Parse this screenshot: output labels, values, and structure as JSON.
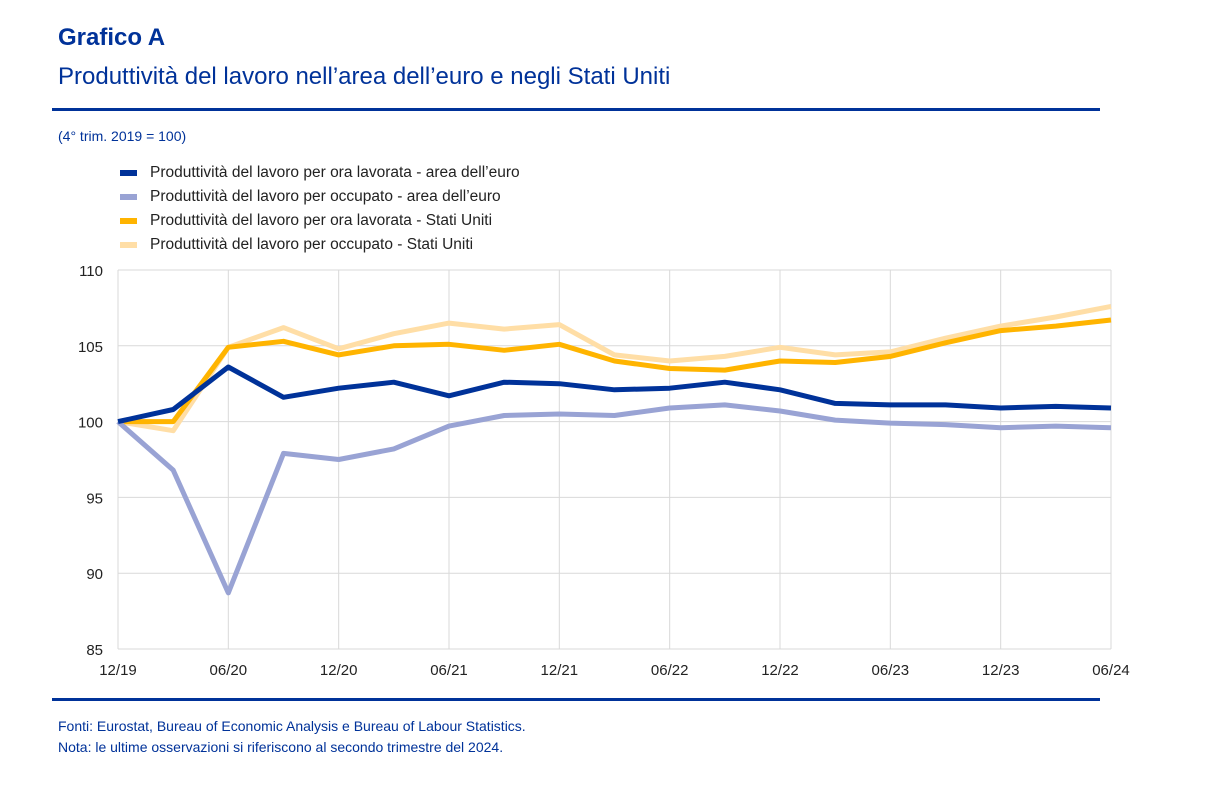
{
  "header": {
    "title": "Grafico A",
    "subtitle": "Produttività del lavoro nell’area dell’euro e negli Stati Uniti",
    "unit": "(4° trim. 2019 = 100)"
  },
  "footer": {
    "sources": "Fonti: Eurostat, Bureau of Economic Analysis e Bureau of Labour Statistics.",
    "note": "Nota: le ultime osservazioni si riferiscono al secondo trimestre del 2024."
  },
  "colors": {
    "brand": "#003299",
    "grid": "#d9d9d9"
  },
  "chart_data": {
    "type": "line",
    "title": "Produttività del lavoro nell’area dell’euro e negli Stati Uniti",
    "subtitle": "(4° trim. 2019 = 100)",
    "xlabel": "",
    "ylabel": "",
    "ylim": [
      85,
      110
    ],
    "yticks": [
      85,
      90,
      95,
      100,
      105,
      110
    ],
    "x": [
      "Q4 2019",
      "Q1 2020",
      "Q2 2020",
      "Q3 2020",
      "Q4 2020",
      "Q1 2021",
      "Q2 2021",
      "Q3 2021",
      "Q4 2021",
      "Q1 2022",
      "Q2 2022",
      "Q3 2022",
      "Q4 2022",
      "Q1 2023",
      "Q2 2023",
      "Q3 2023",
      "Q4 2023",
      "Q1 2024",
      "Q2 2024"
    ],
    "xtick_labels": [
      "12/19",
      "06/20",
      "12/20",
      "06/21",
      "12/21",
      "06/22",
      "12/22",
      "06/23",
      "12/23",
      "06/24"
    ],
    "xtick_indices": [
      0,
      2,
      4,
      6,
      8,
      10,
      12,
      14,
      16,
      18
    ],
    "grid": true,
    "legend_position": "top-left",
    "series": [
      {
        "name": "Produttività del lavoro per ora lavorata - area dell’euro",
        "color": "#003299",
        "values": [
          100,
          100.8,
          103.6,
          101.6,
          102.2,
          102.6,
          101.7,
          102.6,
          102.5,
          102.1,
          102.2,
          102.6,
          102.1,
          101.2,
          101.1,
          101.1,
          100.9,
          101.0,
          100.9
        ]
      },
      {
        "name": "Produttività del lavoro per occupato - area dell’euro",
        "color": "#99a3d4",
        "values": [
          100,
          96.8,
          88.7,
          97.9,
          97.5,
          98.2,
          99.7,
          100.4,
          100.5,
          100.4,
          100.9,
          101.1,
          100.7,
          100.1,
          99.9,
          99.8,
          99.6,
          99.7,
          99.6
        ]
      },
      {
        "name": "Produttività del lavoro per ora lavorata - Stati Uniti",
        "color": "#ffb400",
        "values": [
          100,
          100.0,
          104.9,
          105.3,
          104.4,
          105.0,
          105.1,
          104.7,
          105.1,
          104.0,
          103.5,
          103.4,
          104.0,
          103.9,
          104.3,
          105.2,
          106.0,
          106.3,
          106.7
        ]
      },
      {
        "name": "Produttività del lavoro per occupato - Stati Uniti",
        "color": "#ffdea6",
        "values": [
          100,
          99.4,
          104.9,
          106.2,
          104.8,
          105.8,
          106.5,
          106.1,
          106.4,
          104.4,
          104.0,
          104.3,
          104.9,
          104.4,
          104.6,
          105.5,
          106.3,
          106.9,
          107.6
        ]
      }
    ]
  }
}
